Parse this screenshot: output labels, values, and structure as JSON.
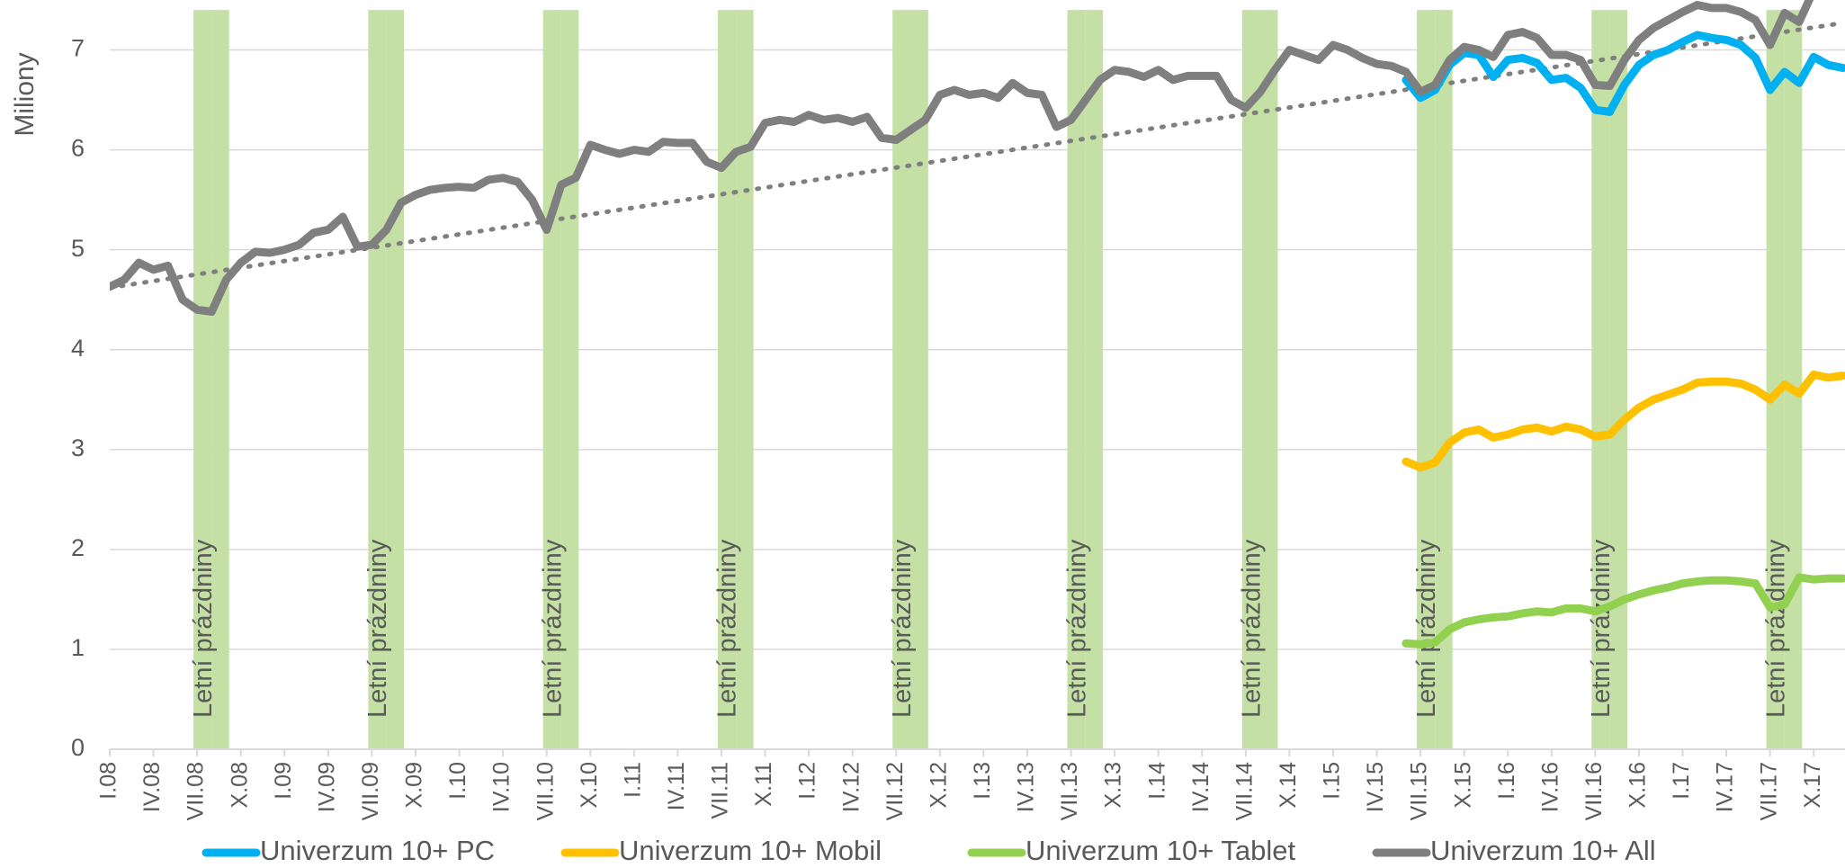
{
  "chart_data": {
    "type": "line",
    "y_label": "Miliony",
    "ylim": [
      0,
      7.5
    ],
    "yticks": [
      0,
      1,
      2,
      3,
      4,
      5,
      6,
      7
    ],
    "grid": true,
    "categories": [
      "I.08",
      null,
      null,
      "IV.08",
      null,
      null,
      "VII.08",
      null,
      null,
      "X.08",
      null,
      null,
      "I.09",
      null,
      null,
      "IV.09",
      null,
      null,
      "VII.09",
      null,
      null,
      "X.09",
      null,
      null,
      "I.10",
      null,
      null,
      "IV.10",
      null,
      null,
      "VII.10",
      null,
      null,
      "X.10",
      null,
      null,
      "I.11",
      null,
      null,
      "IV.11",
      null,
      null,
      "VII.11",
      null,
      null,
      "X.11",
      null,
      null,
      "I.12",
      null,
      null,
      "IV.12",
      null,
      null,
      "VII.12",
      null,
      null,
      "X.12",
      null,
      null,
      "I.13",
      null,
      null,
      "IV.13",
      null,
      null,
      "VII.13",
      null,
      null,
      "X.13",
      null,
      null,
      "I.14",
      null,
      null,
      "IV.14",
      null,
      null,
      "VII.14",
      null,
      null,
      "X.14",
      null,
      null,
      "I.15",
      null,
      null,
      "IV.15",
      null,
      null,
      "VII.15",
      null,
      null,
      "X.15",
      null,
      null,
      "I.16",
      null,
      null,
      "IV.16",
      null,
      null,
      "VII.16",
      null,
      null,
      "X.16",
      null,
      null,
      "I.17",
      null,
      null,
      "IV.17",
      null,
      null,
      "VII.17",
      null,
      null,
      "X.17",
      null,
      null
    ],
    "bands": {
      "name": "Letní prázdniny",
      "color": "#c5e0a5",
      "values": [
        null,
        null,
        null,
        null,
        null,
        null,
        7.4,
        7.4,
        null,
        null,
        null,
        null,
        null,
        null,
        null,
        null,
        null,
        null,
        7.4,
        7.4,
        null,
        null,
        null,
        null,
        null,
        null,
        null,
        null,
        null,
        null,
        7.4,
        7.4,
        null,
        null,
        null,
        null,
        null,
        null,
        null,
        null,
        null,
        null,
        7.4,
        7.4,
        null,
        null,
        null,
        null,
        null,
        null,
        null,
        null,
        null,
        null,
        7.4,
        7.4,
        null,
        null,
        null,
        null,
        null,
        null,
        null,
        null,
        null,
        null,
        7.4,
        7.4,
        null,
        null,
        null,
        null,
        null,
        null,
        null,
        null,
        null,
        null,
        7.4,
        7.4,
        null,
        null,
        null,
        null,
        null,
        null,
        null,
        null,
        null,
        null,
        7.4,
        7.4,
        null,
        null,
        null,
        null,
        null,
        null,
        null,
        null,
        null,
        null,
        7.4,
        7.4,
        null,
        null,
        null,
        null,
        null,
        null,
        null,
        null,
        null,
        null,
        7.4,
        7.4,
        null,
        null,
        null,
        null
      ]
    },
    "trend": {
      "color": "#7f7f7f",
      "values": [
        4.62,
        7.27
      ]
    },
    "series": [
      {
        "name": "Univerzum 10+ PC",
        "color": "#00b0f0",
        "values": [
          null,
          null,
          null,
          null,
          null,
          null,
          null,
          null,
          null,
          null,
          null,
          null,
          null,
          null,
          null,
          null,
          null,
          null,
          null,
          null,
          null,
          null,
          null,
          null,
          null,
          null,
          null,
          null,
          null,
          null,
          null,
          null,
          null,
          null,
          null,
          null,
          null,
          null,
          null,
          null,
          null,
          null,
          null,
          null,
          null,
          null,
          null,
          null,
          null,
          null,
          null,
          null,
          null,
          null,
          null,
          null,
          null,
          null,
          null,
          null,
          null,
          null,
          null,
          null,
          null,
          null,
          null,
          null,
          null,
          null,
          null,
          null,
          null,
          null,
          null,
          null,
          null,
          null,
          null,
          null,
          null,
          null,
          null,
          null,
          null,
          null,
          null,
          null,
          null,
          6.7,
          6.52,
          6.6,
          6.85,
          6.97,
          6.95,
          6.73,
          6.9,
          6.92,
          6.87,
          6.7,
          6.72,
          6.62,
          6.4,
          6.38,
          6.65,
          6.85,
          6.95,
          7.0,
          7.08,
          7.15,
          7.12,
          7.1,
          7.05,
          6.92,
          6.6,
          6.78,
          6.67,
          6.93,
          6.85,
          6.82
        ]
      },
      {
        "name": "Univerzum 10+ Mobil",
        "color": "#ffc000",
        "values": [
          null,
          null,
          null,
          null,
          null,
          null,
          null,
          null,
          null,
          null,
          null,
          null,
          null,
          null,
          null,
          null,
          null,
          null,
          null,
          null,
          null,
          null,
          null,
          null,
          null,
          null,
          null,
          null,
          null,
          null,
          null,
          null,
          null,
          null,
          null,
          null,
          null,
          null,
          null,
          null,
          null,
          null,
          null,
          null,
          null,
          null,
          null,
          null,
          null,
          null,
          null,
          null,
          null,
          null,
          null,
          null,
          null,
          null,
          null,
          null,
          null,
          null,
          null,
          null,
          null,
          null,
          null,
          null,
          null,
          null,
          null,
          null,
          null,
          null,
          null,
          null,
          null,
          null,
          null,
          null,
          null,
          null,
          null,
          null,
          null,
          null,
          null,
          null,
          null,
          2.88,
          2.82,
          2.87,
          3.07,
          3.17,
          3.2,
          3.12,
          3.15,
          3.2,
          3.22,
          3.18,
          3.23,
          3.2,
          3.13,
          3.15,
          3.3,
          3.42,
          3.5,
          3.55,
          3.6,
          3.67,
          3.68,
          3.68,
          3.66,
          3.6,
          3.5,
          3.65,
          3.56,
          3.75,
          3.72,
          3.74
        ]
      },
      {
        "name": "Univerzum 10+ Tablet",
        "color": "#92d050",
        "values": [
          null,
          null,
          null,
          null,
          null,
          null,
          null,
          null,
          null,
          null,
          null,
          null,
          null,
          null,
          null,
          null,
          null,
          null,
          null,
          null,
          null,
          null,
          null,
          null,
          null,
          null,
          null,
          null,
          null,
          null,
          null,
          null,
          null,
          null,
          null,
          null,
          null,
          null,
          null,
          null,
          null,
          null,
          null,
          null,
          null,
          null,
          null,
          null,
          null,
          null,
          null,
          null,
          null,
          null,
          null,
          null,
          null,
          null,
          null,
          null,
          null,
          null,
          null,
          null,
          null,
          null,
          null,
          null,
          null,
          null,
          null,
          null,
          null,
          null,
          null,
          null,
          null,
          null,
          null,
          null,
          null,
          null,
          null,
          null,
          null,
          null,
          null,
          null,
          null,
          1.06,
          1.05,
          1.07,
          1.2,
          1.27,
          1.3,
          1.32,
          1.33,
          1.36,
          1.38,
          1.37,
          1.41,
          1.41,
          1.38,
          1.43,
          1.5,
          1.55,
          1.59,
          1.62,
          1.66,
          1.68,
          1.69,
          1.69,
          1.68,
          1.66,
          1.42,
          1.45,
          1.72,
          1.7,
          1.71,
          1.71
        ]
      },
      {
        "name": "Univerzum 10+ All",
        "color": "#7f7f7f",
        "values": [
          4.63,
          4.7,
          4.87,
          4.8,
          4.84,
          4.5,
          4.4,
          4.38,
          4.7,
          4.87,
          4.98,
          4.97,
          5.0,
          5.05,
          5.17,
          5.2,
          5.33,
          5.03,
          5.05,
          5.2,
          5.47,
          5.55,
          5.6,
          5.62,
          5.63,
          5.62,
          5.7,
          5.72,
          5.68,
          5.5,
          5.2,
          5.65,
          5.72,
          6.05,
          6.0,
          5.96,
          6.0,
          5.98,
          6.08,
          6.07,
          6.07,
          5.88,
          5.82,
          5.98,
          6.03,
          6.27,
          6.3,
          6.28,
          6.35,
          6.3,
          6.32,
          6.28,
          6.33,
          6.12,
          6.1,
          6.2,
          6.3,
          6.55,
          6.6,
          6.55,
          6.57,
          6.52,
          6.67,
          6.57,
          6.55,
          6.23,
          6.3,
          6.5,
          6.7,
          6.8,
          6.78,
          6.73,
          6.8,
          6.7,
          6.74,
          6.74,
          6.74,
          6.5,
          6.42,
          6.58,
          6.8,
          7.0,
          6.95,
          6.9,
          7.05,
          7.0,
          6.92,
          6.86,
          6.84,
          6.78,
          6.58,
          6.65,
          6.9,
          7.03,
          7.0,
          6.93,
          7.15,
          7.18,
          7.12,
          6.95,
          6.95,
          6.9,
          6.65,
          6.64,
          6.9,
          7.1,
          7.22,
          7.3,
          7.38,
          7.45,
          7.42,
          7.42,
          7.38,
          7.3,
          7.05,
          7.37,
          7.28,
          7.6,
          null,
          null
        ]
      }
    ]
  }
}
